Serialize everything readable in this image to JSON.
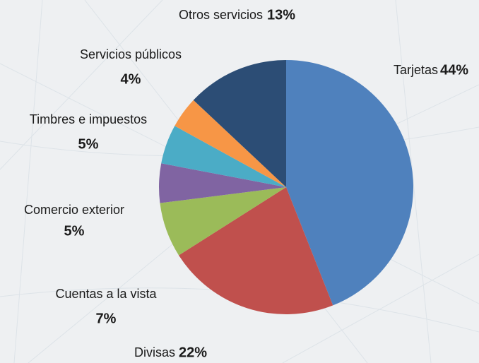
{
  "chart_data": {
    "type": "pie",
    "categories": [
      "Tarjetas",
      "Divisas",
      "Cuentas a la vista",
      "Comercio exterior",
      "Timbres e impuestos",
      "Servicios públicos",
      "Otros servicios"
    ],
    "values": [
      44,
      22,
      7,
      5,
      5,
      4,
      13
    ],
    "value_labels": [
      "44%",
      "22%",
      "7%",
      "5%",
      "5%",
      "4%",
      "13%"
    ],
    "colors": [
      "#4f81bd",
      "#c0504d",
      "#9bbb59",
      "#8064a2",
      "#4bacc6",
      "#f79646",
      "#2c4d75"
    ]
  }
}
